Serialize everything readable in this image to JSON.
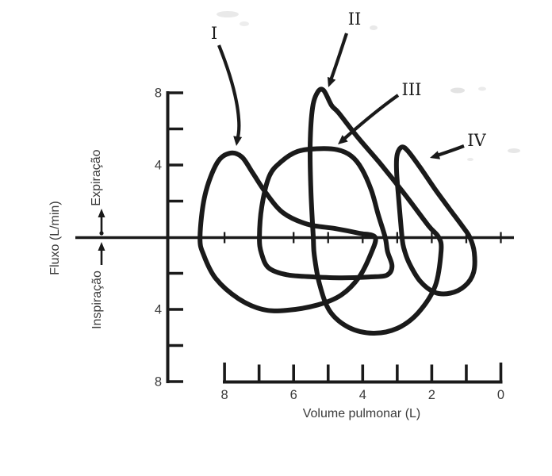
{
  "figure": {
    "y_axis": {
      "label": "Fluxo (L/min)",
      "region_above": "Expiração",
      "region_below": "Inspiração",
      "ticks": [
        {
          "flow": 8,
          "label": "8"
        },
        {
          "flow": 6,
          "label": ""
        },
        {
          "flow": 4,
          "label": "4"
        },
        {
          "flow": 2,
          "label": ""
        },
        {
          "flow": -2,
          "label": ""
        },
        {
          "flow": -4,
          "label": "4"
        },
        {
          "flow": -6,
          "label": ""
        },
        {
          "flow": -8,
          "label": "8"
        }
      ]
    },
    "x_axis": {
      "label": "Volume pulmonar (L)",
      "ticks": [
        {
          "vol": 8,
          "label": "8"
        },
        {
          "vol": 7,
          "label": ""
        },
        {
          "vol": 6,
          "label": "6"
        },
        {
          "vol": 5,
          "label": ""
        },
        {
          "vol": 4,
          "label": "4"
        },
        {
          "vol": 3,
          "label": ""
        },
        {
          "vol": 2,
          "label": "2"
        },
        {
          "vol": 1,
          "label": ""
        },
        {
          "vol": 0,
          "label": "0"
        }
      ]
    }
  },
  "chart_data": {
    "type": "line",
    "title": "",
    "xlabel": "Volume pulmonar (L)",
    "ylabel": "Fluxo (L/min)",
    "x_axis": {
      "min": 0,
      "max": 9,
      "direction": "reversed",
      "tick_step": 1,
      "labeled_ticks": [
        8,
        6,
        4,
        2,
        0
      ]
    },
    "y_axis": {
      "min": -8,
      "max": 8,
      "tick_step": 2,
      "labeled_ticks_absolute": [
        8,
        4,
        4,
        8
      ]
    },
    "flow_regions": {
      "positive": "Expiração",
      "negative": "Inspiração"
    },
    "legend": "none",
    "series": [
      {
        "name": "I",
        "peak_expiratory_flow_L_min": 4.7,
        "peak_at_volume_L": 7.85,
        "zero_crossings_volume_L": [
          8.71,
          3.64
        ],
        "points": [
          [
            8.71,
            0
          ],
          [
            8.57,
            2.3
          ],
          [
            8.22,
            4.1
          ],
          [
            7.85,
            4.65
          ],
          [
            7.5,
            4.45
          ],
          [
            7.18,
            3.55
          ],
          [
            6.8,
            2.45
          ],
          [
            6.3,
            1.35
          ],
          [
            5.6,
            0.72
          ],
          [
            4.8,
            0.48
          ],
          [
            4.1,
            0.22
          ],
          [
            3.64,
            0
          ],
          [
            3.76,
            -0.9
          ],
          [
            4.1,
            -2.2
          ],
          [
            4.62,
            -3.2
          ],
          [
            5.3,
            -3.75
          ],
          [
            6.2,
            -4.05
          ],
          [
            6.9,
            -4.0
          ],
          [
            7.6,
            -3.4
          ],
          [
            8.25,
            -2.3
          ],
          [
            8.6,
            -1.0
          ]
        ]
      },
      {
        "name": "II",
        "peak_expiratory_flow_L_min": 8.1,
        "peak_at_volume_L": 5.2,
        "zero_crossings_volume_L": [
          5.43,
          1.8
        ],
        "points": [
          [
            5.43,
            0
          ],
          [
            5.5,
            2.6
          ],
          [
            5.52,
            5.2
          ],
          [
            5.45,
            7.2
          ],
          [
            5.3,
            8.05
          ],
          [
            5.13,
            8.13
          ],
          [
            4.9,
            7.3
          ],
          [
            4.7,
            6.9
          ],
          [
            4.15,
            5.55
          ],
          [
            3.5,
            4.1
          ],
          [
            2.75,
            2.3
          ],
          [
            2.1,
            0.65
          ],
          [
            1.8,
            0
          ],
          [
            1.73,
            -0.75
          ],
          [
            1.9,
            -2.7
          ],
          [
            2.4,
            -4.2
          ],
          [
            3.0,
            -5.05
          ],
          [
            3.7,
            -5.32
          ],
          [
            4.4,
            -5.0
          ],
          [
            4.95,
            -4.1
          ],
          [
            5.25,
            -2.6
          ],
          [
            5.4,
            -1.0
          ]
        ]
      },
      {
        "name": "III",
        "peak_expiratory_flow_L_min": 4.9,
        "peak_at_volume_L": 5.3,
        "zero_crossings_volume_L": [
          6.99,
          3.35
        ],
        "points": [
          [
            6.99,
            0
          ],
          [
            6.92,
            1.7
          ],
          [
            6.7,
            3.4
          ],
          [
            6.35,
            4.2
          ],
          [
            5.89,
            4.75
          ],
          [
            5.32,
            4.9
          ],
          [
            4.74,
            4.85
          ],
          [
            4.33,
            4.5
          ],
          [
            4.03,
            3.8
          ],
          [
            3.75,
            2.6
          ],
          [
            3.55,
            1.25
          ],
          [
            3.35,
            0
          ],
          [
            3.28,
            -0.8
          ],
          [
            3.15,
            -1.6
          ],
          [
            3.3,
            -2.1
          ],
          [
            3.8,
            -2.2
          ],
          [
            4.6,
            -2.25
          ],
          [
            5.4,
            -2.2
          ],
          [
            6.2,
            -2.08
          ],
          [
            6.72,
            -1.7
          ],
          [
            6.93,
            -0.9
          ]
        ]
      },
      {
        "name": "IV",
        "peak_expiratory_flow_L_min": 5.0,
        "peak_at_volume_L": 2.88,
        "zero_crossings_volume_L": [
          2.86,
          0.9
        ],
        "points": [
          [
            2.86,
            0
          ],
          [
            2.95,
            1.95
          ],
          [
            3.02,
            3.7
          ],
          [
            3.0,
            4.6
          ],
          [
            2.86,
            5.0
          ],
          [
            2.68,
            4.75
          ],
          [
            2.33,
            3.85
          ],
          [
            1.92,
            2.7
          ],
          [
            1.5,
            1.6
          ],
          [
            1.11,
            0.6
          ],
          [
            0.9,
            0
          ],
          [
            0.77,
            -0.85
          ],
          [
            0.79,
            -1.95
          ],
          [
            1.04,
            -2.7
          ],
          [
            1.46,
            -3.1
          ],
          [
            1.92,
            -3.05
          ],
          [
            2.33,
            -2.45
          ],
          [
            2.65,
            -1.45
          ],
          [
            2.81,
            -0.6
          ]
        ]
      }
    ]
  }
}
